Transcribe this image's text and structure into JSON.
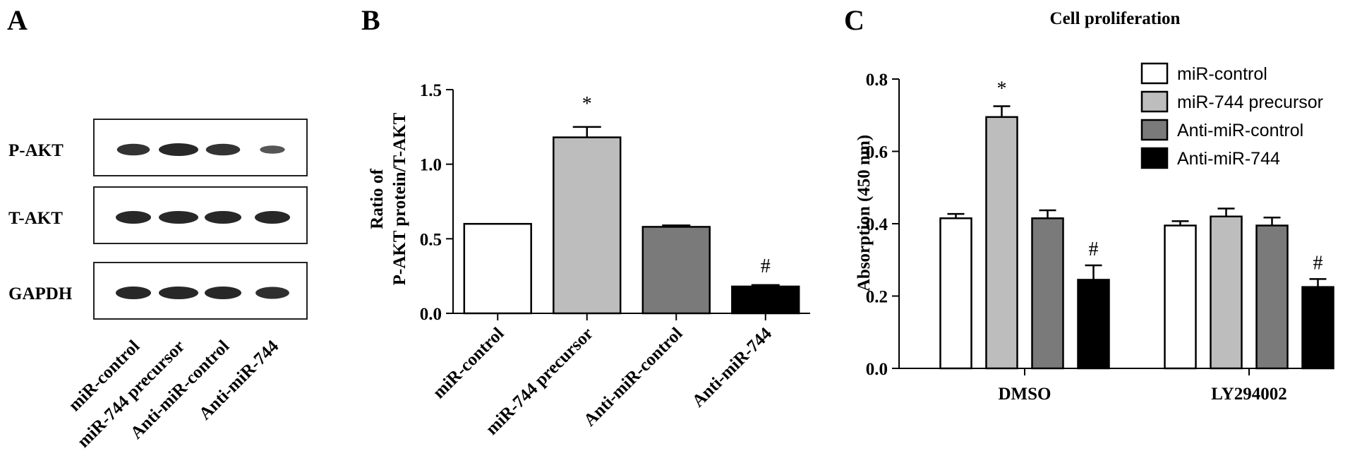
{
  "panels": {
    "a": {
      "letter": "A"
    },
    "b": {
      "letter": "B"
    },
    "c": {
      "letter": "C"
    }
  },
  "blot": {
    "rows": [
      "P-AKT",
      "T-AKT",
      "GAPDH"
    ],
    "lanes": [
      "miR-control",
      "miR-744 precursor",
      "Anti-miR-control",
      "Anti-miR-744"
    ],
    "band_intensity": {
      "P-AKT": [
        0.85,
        1.0,
        0.85,
        0.35
      ],
      "T-AKT": [
        1.0,
        1.0,
        1.0,
        1.0
      ],
      "GAPDH": [
        1.0,
        1.0,
        1.0,
        0.9
      ]
    }
  },
  "colors": {
    "miR-control": "#ffffff",
    "miR-744 precursor": "#bdbdbd",
    "Anti-miR-control": "#7a7a7a",
    "Anti-miR-744": "#000000"
  },
  "chart_data": [
    {
      "type": "bar",
      "panel": "B",
      "categories": [
        "miR-control",
        "miR-744 precursor",
        "Anti-miR-control",
        "Anti-miR-744"
      ],
      "values": [
        0.6,
        1.18,
        0.58,
        0.18
      ],
      "errors": [
        0.0,
        0.07,
        0.01,
        0.01
      ],
      "annotations": [
        "",
        "*",
        "",
        "#"
      ],
      "title": "",
      "ylabel_lines": [
        "Ratio of",
        "P-AKT protein/T-AKT"
      ],
      "ylim": [
        0,
        1.5
      ],
      "yticks": [
        "0.0",
        "0.5",
        "1.0",
        "1.5"
      ],
      "grid": false
    },
    {
      "type": "bar",
      "panel": "C",
      "title": "Cell proliferation",
      "categories": [
        "DMSO",
        "LY294002"
      ],
      "series": [
        {
          "name": "miR-control",
          "values": [
            0.415,
            0.395
          ],
          "errors": [
            0.012,
            0.012
          ],
          "annotations": [
            "",
            ""
          ]
        },
        {
          "name": "miR-744 precursor",
          "values": [
            0.695,
            0.42
          ],
          "errors": [
            0.03,
            0.022
          ],
          "annotations": [
            "*",
            ""
          ]
        },
        {
          "name": "Anti-miR-control",
          "values": [
            0.415,
            0.395
          ],
          "errors": [
            0.022,
            0.022
          ],
          "annotations": [
            "",
            ""
          ]
        },
        {
          "name": "Anti-miR-744",
          "values": [
            0.245,
            0.225
          ],
          "errors": [
            0.04,
            0.022
          ],
          "annotations": [
            "#",
            "#"
          ]
        }
      ],
      "ylabel": "Absorption (450 nm)",
      "ylim": [
        0,
        0.8
      ],
      "yticks": [
        "0.0",
        "0.2",
        "0.4",
        "0.6",
        "0.8"
      ],
      "legend": "top-right",
      "grid": false
    }
  ]
}
